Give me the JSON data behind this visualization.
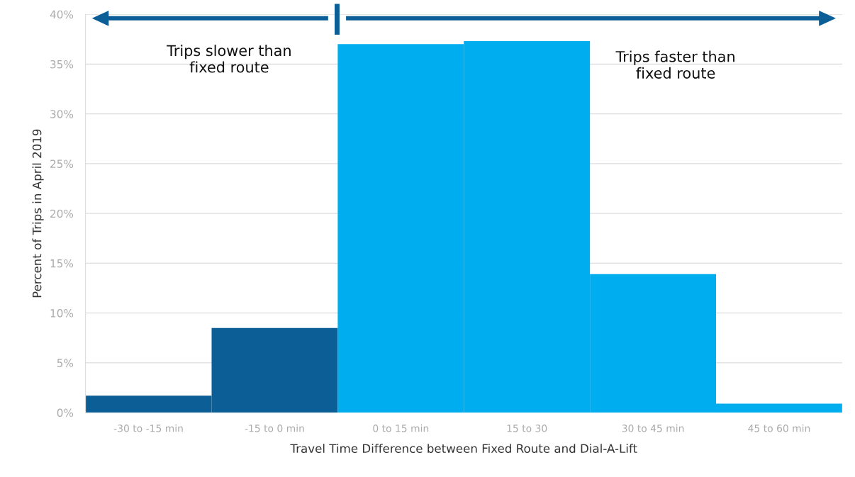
{
  "chart_data": {
    "type": "bar",
    "categories": [
      "-30 to -15 min",
      "-15 to 0 min",
      "0 to 15 min",
      "15 to 30",
      "30 to 45 min",
      "45 to 60 min"
    ],
    "values": [
      1.7,
      8.5,
      37.0,
      37.3,
      13.9,
      0.9
    ],
    "colors": [
      "#0b5e96",
      "#0b5e96",
      "#00adef",
      "#00adef",
      "#00adef",
      "#00adef"
    ],
    "xlabel": "Travel Time Difference between Fixed Route and Dial-A-Lift",
    "ylabel": "Percent of Trips in April 2019",
    "ylim": [
      0,
      40
    ],
    "yticks": [
      {
        "value": 0,
        "label": "0%"
      },
      {
        "value": 5,
        "label": "5%"
      },
      {
        "value": 10,
        "label": "10%"
      },
      {
        "value": 15,
        "label": "15%"
      },
      {
        "value": 20,
        "label": "20%"
      },
      {
        "value": 25,
        "label": "25%"
      },
      {
        "value": 30,
        "label": "30%"
      },
      {
        "value": 35,
        "label": "35%"
      },
      {
        "value": 40,
        "label": "40%"
      }
    ],
    "grid": "y",
    "annotations": [
      "Trips slower than\nfixed route",
      "Trips faster than\nfixed route"
    ]
  }
}
